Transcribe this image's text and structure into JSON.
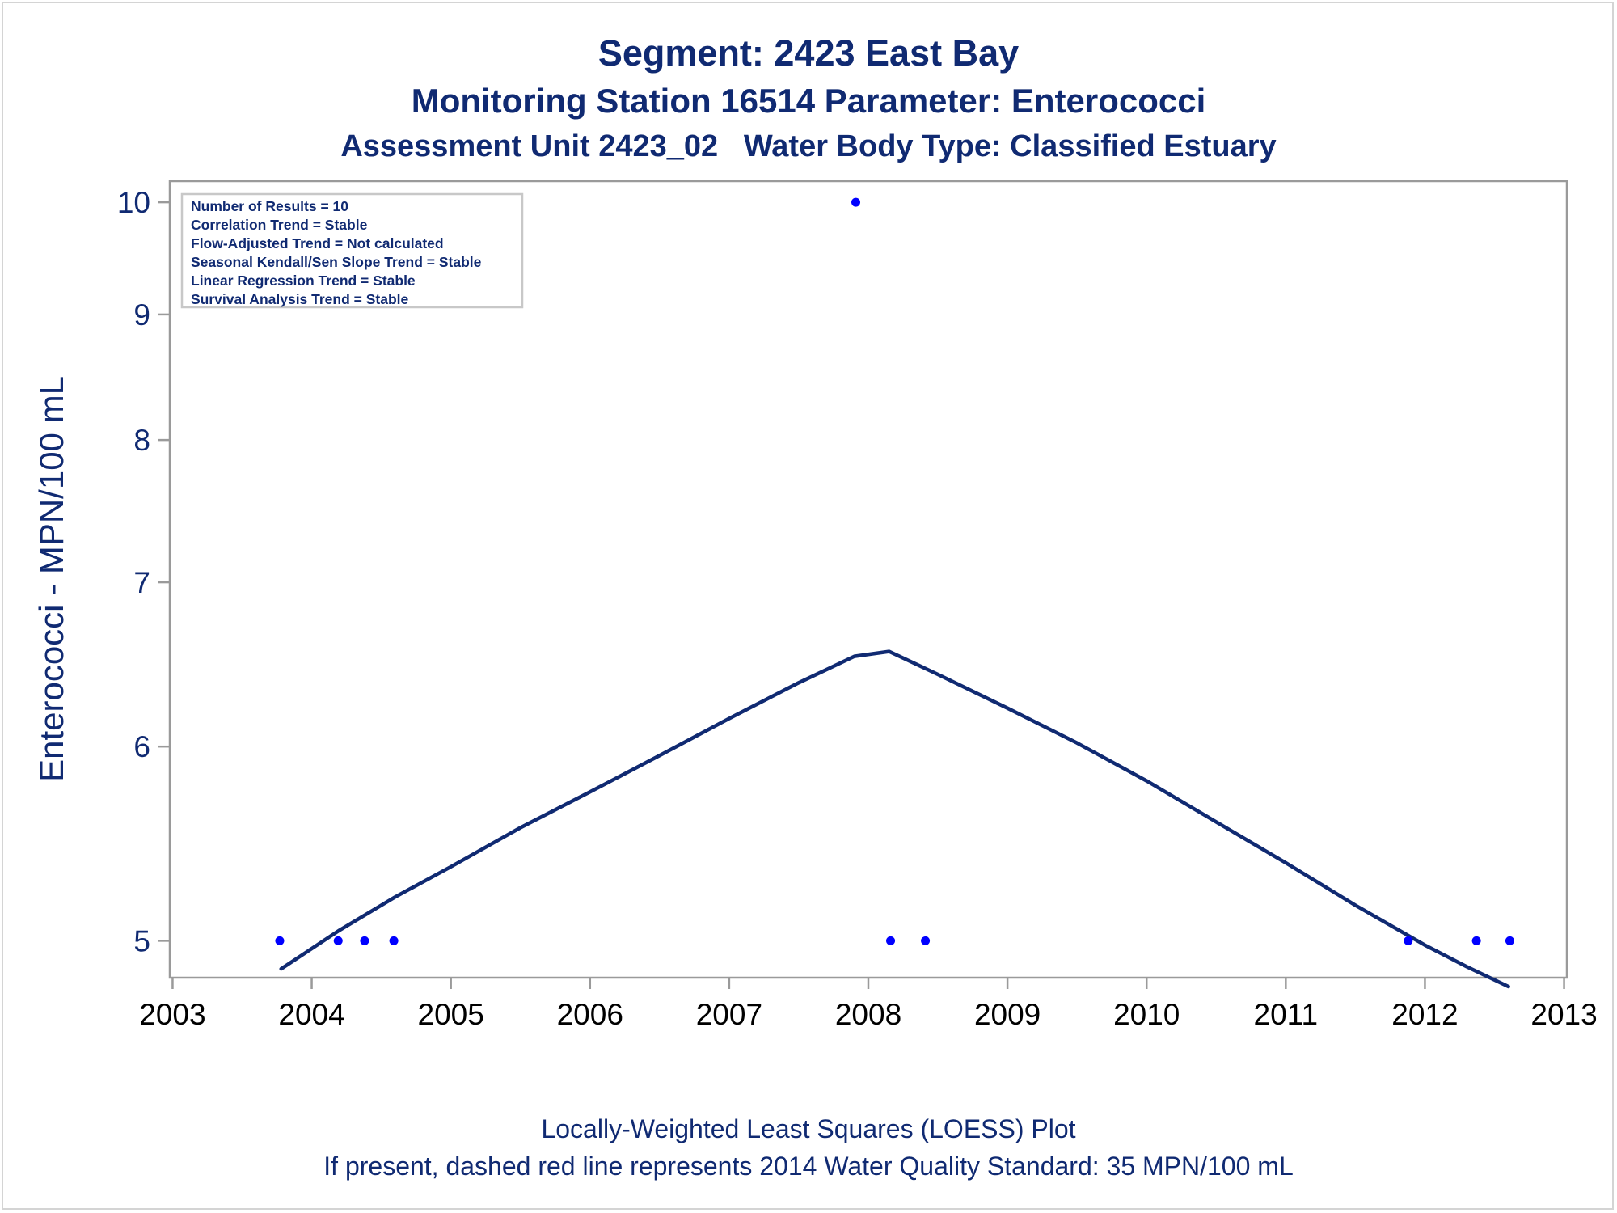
{
  "chart_data": {
    "type": "scatter",
    "title": "Segment: 2423  East Bay",
    "subtitle_1": "Monitoring Station 16514 Parameter: Enterococci",
    "subtitle_2": "Assessment Unit 2423_02   Water Body Type: Classified Estuary",
    "xlabel": "",
    "ylabel": "Enterococci - MPN/100 mL",
    "y_scale": "log",
    "xlim": [
      2002.98,
      2013.02
    ],
    "ylim": [
      4.83,
      10.2
    ],
    "x_ticks": [
      2003,
      2004,
      2005,
      2006,
      2007,
      2008,
      2009,
      2010,
      2011,
      2012,
      2013
    ],
    "y_ticks": [
      5,
      6,
      7,
      8,
      9,
      10
    ],
    "grid": false,
    "stats_box": {
      "placement": "top-left",
      "lines": [
        "Number of Results = 10",
        "Correlation Trend = Stable",
        "Flow-Adjusted Trend = Not calculated",
        "Seasonal Kendall/Sen Slope Trend = Stable",
        "Linear Regression Trend = Stable",
        "Survival Analysis Trend = Stable"
      ]
    },
    "series": [
      {
        "kind": "points",
        "color": "#0000ff",
        "x": [
          2003.77,
          2004.19,
          2004.38,
          2004.59,
          2007.91,
          2008.16,
          2008.41,
          2011.88,
          2012.37,
          2012.61
        ],
        "y": [
          5,
          5,
          5,
          5,
          10,
          5,
          5,
          5,
          5,
          5
        ]
      },
      {
        "kind": "loess-line",
        "color": "#102a72",
        "x": [
          2003.78,
          2004.2,
          2004.6,
          2005.0,
          2005.5,
          2006.0,
          2006.5,
          2007.0,
          2007.5,
          2007.9,
          2008.15,
          2008.5,
          2009.0,
          2009.5,
          2010.0,
          2010.5,
          2011.0,
          2011.5,
          2012.0,
          2012.3,
          2012.6
        ],
        "y": [
          4.87,
          5.05,
          5.21,
          5.36,
          5.56,
          5.75,
          5.95,
          6.16,
          6.37,
          6.53,
          6.56,
          6.42,
          6.22,
          6.02,
          5.81,
          5.59,
          5.38,
          5.17,
          4.98,
          4.88,
          4.79
        ]
      }
    ]
  },
  "footnote": {
    "line1": "Locally-Weighted Least Squares (LOESS) Plot",
    "line2": "If present, dashed red line represents 2014 Water Quality Standard: 35 MPN/100 mL"
  }
}
